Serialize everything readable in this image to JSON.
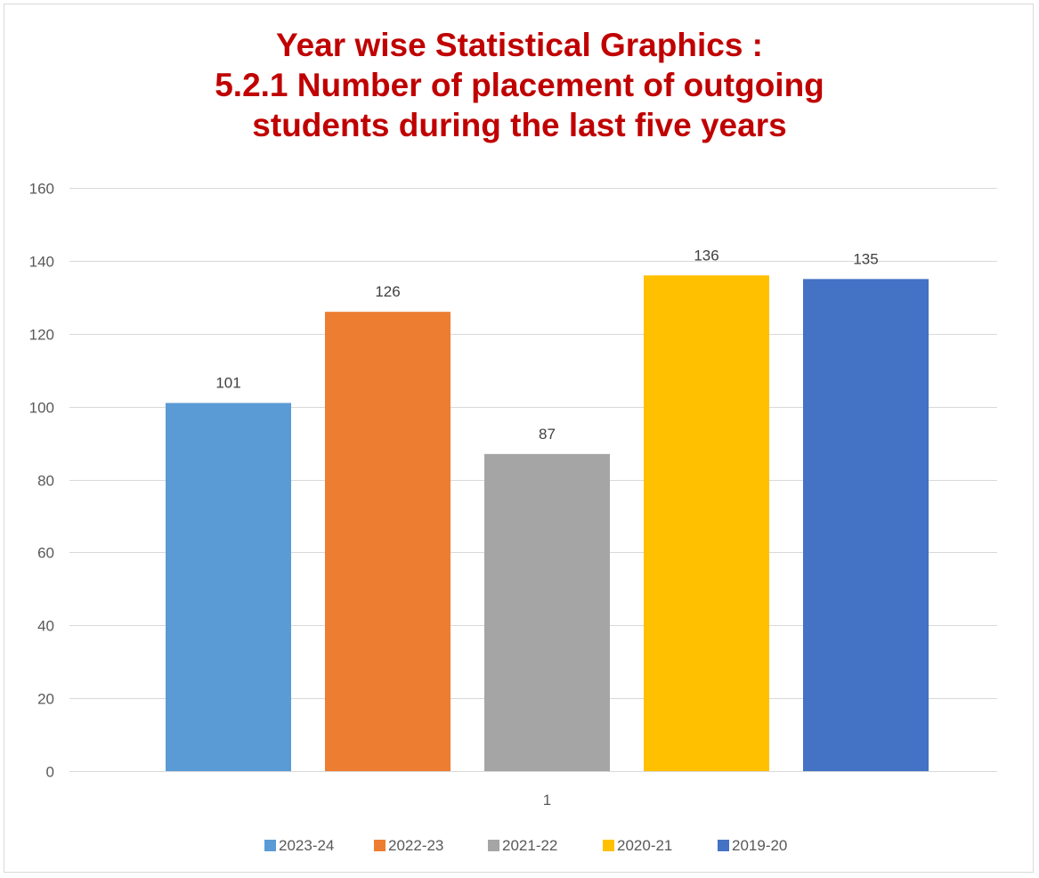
{
  "chart_data": {
    "type": "bar",
    "title_lines": [
      "Year wise Statistical Graphics :",
      "5.2.1 Number of placement of outgoing",
      "students during the last five years"
    ],
    "categories": [
      "1"
    ],
    "series": [
      {
        "name": "2023-24",
        "values": [
          101
        ],
        "color": "#5b9bd5"
      },
      {
        "name": "2022-23",
        "values": [
          126
        ],
        "color": "#ed7d31"
      },
      {
        "name": "2021-22",
        "values": [
          87
        ],
        "color": "#a5a5a5"
      },
      {
        "name": "2020-21",
        "values": [
          136
        ],
        "color": "#ffc000"
      },
      {
        "name": "2019-20",
        "values": [
          135
        ],
        "color": "#4472c4"
      }
    ],
    "ylim": [
      0,
      160
    ],
    "yticks": [
      0,
      20,
      40,
      60,
      80,
      100,
      120,
      140,
      160
    ],
    "grid": true,
    "legend": "bottom",
    "data_labels": true,
    "title_color": "#c00000"
  }
}
